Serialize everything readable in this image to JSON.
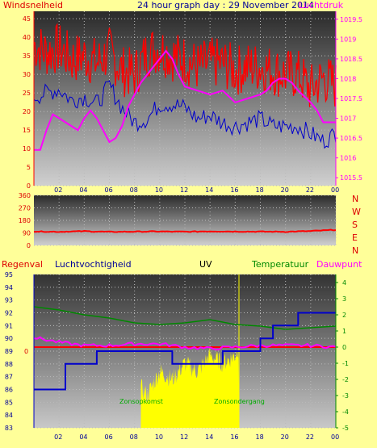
{
  "header": {
    "left_label": "Windsnelheid",
    "title": "24 hour graph day : 29 November 2014",
    "right_label": "Luchtdruk"
  },
  "colors": {
    "page_bg": "#ffff99",
    "wind": "#ff0000",
    "gust": "#ff0000",
    "avg_wind": "#0000cc",
    "pressure": "#ff00ff",
    "humidity": "#0000cc",
    "temperature": "#008800",
    "dewpoint": "#ff00ff",
    "rain": "#ff0000",
    "uv": "#ffff00",
    "heading_left": "#dd0000",
    "heading_humidity": "#000099",
    "heading_temp": "#008800",
    "heading_dew": "#ff00ff",
    "heading_uv": "#000000"
  },
  "chart_data": [
    {
      "id": "wind_pressure",
      "type": "line",
      "x_ticks": [
        "02",
        "04",
        "06",
        "08",
        "10",
        "12",
        "14",
        "16",
        "18",
        "20",
        "22",
        "00"
      ],
      "ylabel_left": "Windsnelheid",
      "ylabel_right": "Luchtdruk",
      "y_left_ticks": [
        0,
        5,
        10,
        15,
        20,
        25,
        30,
        35,
        40,
        45
      ],
      "ylim_left": [
        0,
        47
      ],
      "y_right_ticks": [
        "1015.5",
        "1016",
        "1016.5",
        "1017",
        "1017.5",
        "1018",
        "1018.5",
        "1019",
        "1019.5"
      ],
      "ylim_right": [
        1015.3,
        1019.7
      ],
      "series": [
        {
          "key": "gust",
          "x": [
            0,
            1,
            2,
            3,
            4,
            5,
            6,
            7,
            8,
            9,
            10,
            11,
            12,
            13,
            14,
            15,
            16,
            17,
            18,
            19,
            20,
            21,
            22,
            23,
            24
          ],
          "values": [
            38,
            36,
            37,
            34,
            35,
            33,
            36,
            31,
            30,
            36,
            37,
            35,
            34,
            32,
            33,
            33,
            31,
            32,
            32,
            31,
            30,
            30,
            26,
            29,
            27
          ]
        },
        {
          "key": "avg_wind",
          "x": [
            0,
            1,
            2,
            3,
            4,
            5,
            6,
            7,
            8,
            9,
            10,
            11,
            12,
            13,
            14,
            15,
            16,
            17,
            18,
            19,
            20,
            21,
            22,
            23,
            24
          ],
          "values": [
            24,
            25,
            26,
            23,
            24,
            22,
            27,
            21,
            17,
            18,
            22,
            22,
            21,
            18,
            19,
            17,
            16,
            17,
            18,
            16,
            16,
            16,
            14,
            12,
            14
          ]
        },
        {
          "key": "pressure",
          "x": [
            0,
            0.5,
            1,
            1.5,
            2,
            3,
            3.5,
            4,
            4.5,
            5,
            5.5,
            6,
            6.5,
            7,
            7.5,
            8,
            8.5,
            9,
            10,
            10.5,
            11,
            11.5,
            12,
            13,
            14,
            15,
            16,
            17,
            18,
            18.5,
            19,
            19.5,
            20,
            20.5,
            21,
            22,
            22.5,
            23,
            23.5,
            24
          ],
          "values": [
            1016.2,
            1016.2,
            1016.7,
            1017.1,
            1017.0,
            1016.8,
            1016.7,
            1017.0,
            1017.2,
            1017.0,
            1016.7,
            1016.4,
            1016.5,
            1016.8,
            1017.3,
            1017.6,
            1017.9,
            1018.1,
            1018.5,
            1018.7,
            1018.5,
            1018.1,
            1017.8,
            1017.7,
            1017.6,
            1017.7,
            1017.4,
            1017.5,
            1017.6,
            1017.7,
            1017.9,
            1018.0,
            1018.0,
            1017.9,
            1017.7,
            1017.4,
            1017.2,
            1016.9,
            1016.9,
            1016.9
          ]
        }
      ]
    },
    {
      "id": "wind_direction",
      "type": "line",
      "y_ticks": [
        0,
        90,
        180,
        270,
        360
      ],
      "ylim": [
        0,
        360
      ],
      "right_labels": [
        "N",
        "W",
        "S",
        "E",
        "N"
      ],
      "series": [
        {
          "key": "direction",
          "x": [
            0,
            2,
            4,
            6,
            8,
            10,
            12,
            14,
            16,
            18,
            20,
            22,
            24
          ],
          "values": [
            100,
            98,
            102,
            97,
            99,
            100,
            98,
            101,
            100,
            99,
            98,
            103,
            112
          ]
        }
      ]
    },
    {
      "id": "rain_humidity_uv_temp_dew",
      "type": "line",
      "headers": [
        "Regenval",
        "Luchtvochtigheid",
        "UV",
        "Temperatuur",
        "Dauwpunt"
      ],
      "x_ticks": [
        "02",
        "04",
        "06",
        "08",
        "10",
        "12",
        "14",
        "16",
        "18",
        "20",
        "22",
        "00"
      ],
      "y_left_ticks": [
        83,
        84,
        85,
        86,
        87,
        88,
        89,
        90,
        91,
        92,
        93,
        94,
        95
      ],
      "ylim_left": [
        83,
        95
      ],
      "y_right_ticks": [
        -5,
        -4,
        -3,
        -2,
        -1,
        0,
        1,
        2,
        3,
        4
      ],
      "ylim_right": [
        -5,
        4.5
      ],
      "rain_zero_label": "0",
      "annotations": [
        "Zonsopkomst",
        "Zonsondergang"
      ],
      "series": [
        {
          "key": "humidity",
          "x": [
            0,
            2,
            2.5,
            3,
            4,
            5,
            5.5,
            6,
            7,
            8,
            9,
            10,
            11,
            12,
            13,
            14,
            15,
            16,
            17,
            18,
            18.5,
            19,
            20,
            21,
            22,
            23,
            24
          ],
          "values": [
            86,
            86,
            88,
            88,
            88,
            89,
            89,
            89,
            89,
            89,
            89,
            89,
            88,
            88,
            88,
            88,
            89,
            89,
            89,
            90,
            90,
            91,
            91,
            92,
            92,
            92,
            92
          ]
        },
        {
          "key": "temperature",
          "x": [
            0,
            2,
            4,
            6,
            8,
            10,
            12,
            14,
            16,
            18,
            20,
            22,
            24
          ],
          "values": [
            2.5,
            2.3,
            2.0,
            1.8,
            1.5,
            1.4,
            1.5,
            1.7,
            1.4,
            1.3,
            1.1,
            1.2,
            1.3
          ]
        },
        {
          "key": "dewpoint",
          "x": [
            0,
            2,
            4,
            6,
            8,
            10,
            12,
            14,
            16,
            18,
            20,
            22,
            24
          ],
          "values": [
            0.6,
            0.3,
            0.1,
            0.1,
            0.2,
            0.2,
            0.0,
            -0.1,
            0.0,
            0.1,
            0.1,
            0.1,
            0.0
          ]
        },
        {
          "key": "uv",
          "x": [
            8.5,
            9,
            10,
            11,
            12,
            13,
            14,
            15,
            16,
            16.3
          ],
          "values": [
            -2.5,
            -3,
            -1.5,
            -2,
            -1,
            -1.5,
            -0.5,
            -1,
            -0.5,
            0
          ]
        }
      ]
    }
  ]
}
